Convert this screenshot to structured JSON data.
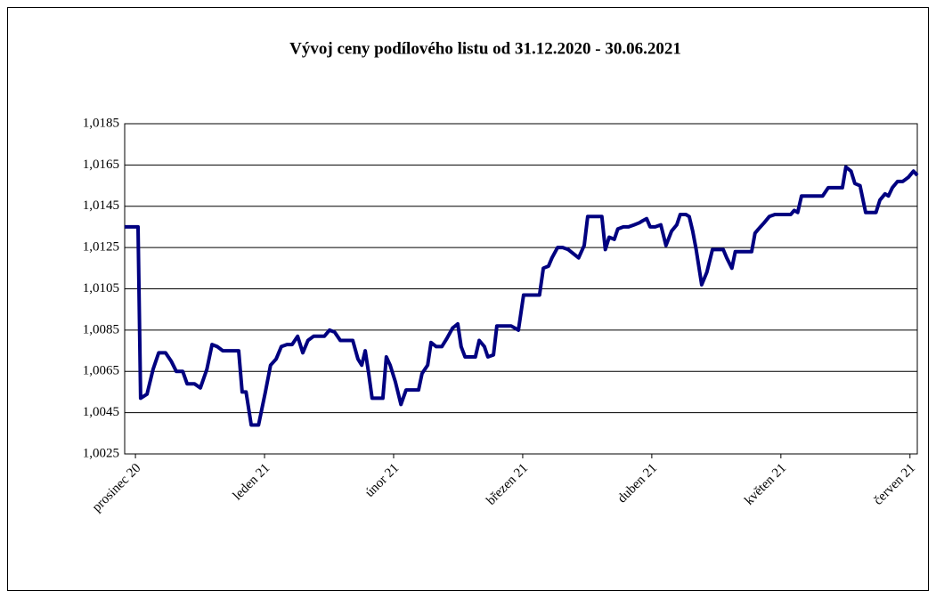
{
  "chart_data": {
    "type": "line",
    "title": "Vývoj ceny podílového listu od 31.12.2020 - 30.06.2021",
    "x": [
      -2.5,
      0.6,
      1.2,
      2.7,
      4.1,
      5.4,
      7.0,
      8.3,
      9.5,
      11.0,
      12.0,
      13.7,
      15.1,
      16.6,
      17.8,
      19.0,
      20.3,
      21.9,
      24.0,
      24.8,
      25.7,
      26.9,
      28.6,
      30.2,
      31.4,
      32.7,
      33.9,
      35.2,
      36.4,
      37.7,
      38.9,
      40.1,
      41.4,
      42.6,
      43.9,
      45.1,
      46.3,
      47.6,
      49.2,
      50.5,
      51.7,
      52.6,
      53.4,
      54.2,
      55.0,
      56.3,
      57.5,
      58.3,
      59.2,
      60.4,
      61.7,
      62.9,
      64.6,
      65.8,
      66.6,
      67.9,
      68.7,
      69.9,
      71.2,
      72.4,
      73.7,
      74.9,
      75.7,
      76.6,
      77.8,
      79.0,
      79.9,
      81.1,
      81.9,
      83.2,
      84.0,
      85.2,
      86.1,
      87.3,
      89.0,
      90.2,
      91.5,
      92.7,
      93.9,
      94.8,
      96.0,
      96.8,
      98.1,
      99.3,
      100.6,
      101.8,
      103.0,
      104.3,
      105.1,
      106.3,
      107.6,
      108.4,
      109.2,
      110.1,
      111.3,
      112.1,
      113.4,
      114.6,
      115.9,
      117.1,
      117.9,
      118.8,
      119.6,
      120.8,
      122.1,
      123.3,
      124.6,
      125.8,
      126.6,
      127.9,
      128.7,
      129.5,
      130.3,
      131.6,
      132.8,
      134.1,
      135.3,
      136.6,
      137.4,
      138.6,
      139.4,
      140.7,
      141.9,
      143.2,
      144.0,
      144.8,
      146.1,
      147.3,
      148.6,
      149.8,
      151.0,
      152.3,
      153.1,
      153.9,
      154.8,
      156.0,
      157.2,
      158.5,
      159.7,
      161.0,
      162.2,
      163.5,
      164.3,
      165.1,
      166.3,
      167.2,
      168.4,
      169.7,
      170.9,
      172.1,
      173.0,
      174.2,
      175.0,
      175.9,
      177.1,
      178.3,
      179.6,
      180.8,
      181.7
    ],
    "series": [
      {
        "color": "#000080",
        "values": [
          1.0135,
          1.0135,
          1.0052,
          1.0054,
          1.0066,
          1.0074,
          1.0074,
          1.007,
          1.0065,
          1.0065,
          1.0059,
          1.0059,
          1.0057,
          1.0066,
          1.0078,
          1.0077,
          1.0075,
          1.0075,
          1.0075,
          1.0055,
          1.0055,
          1.0039,
          1.0039,
          1.0055,
          1.0068,
          1.0071,
          1.0077,
          1.0078,
          1.0078,
          1.0082,
          1.0074,
          1.008,
          1.0082,
          1.0082,
          1.0082,
          1.0085,
          1.0084,
          1.008,
          1.008,
          1.008,
          1.0071,
          1.0068,
          1.0075,
          1.0064,
          1.0052,
          1.0052,
          1.0052,
          1.0072,
          1.0068,
          1.006,
          1.0049,
          1.0056,
          1.0056,
          1.0056,
          1.0064,
          1.0068,
          1.0079,
          1.0077,
          1.0077,
          1.0081,
          1.0086,
          1.0088,
          1.0077,
          1.0072,
          1.0072,
          1.0072,
          1.008,
          1.0077,
          1.0072,
          1.0073,
          1.0087,
          1.0087,
          1.0087,
          1.0087,
          1.0085,
          1.0102,
          1.0102,
          1.0102,
          1.0102,
          1.0115,
          1.0116,
          1.012,
          1.0125,
          1.0125,
          1.0124,
          1.0122,
          1.012,
          1.0126,
          1.014,
          1.014,
          1.014,
          1.014,
          1.0124,
          1.013,
          1.0129,
          1.0134,
          1.0135,
          1.0135,
          1.0136,
          1.0137,
          1.0138,
          1.0139,
          1.0135,
          1.0135,
          1.0136,
          1.0126,
          1.0133,
          1.0136,
          1.0141,
          1.0141,
          1.014,
          1.0133,
          1.0124,
          1.0107,
          1.0113,
          1.0124,
          1.0124,
          1.0124,
          1.012,
          1.0115,
          1.0123,
          1.0123,
          1.0123,
          1.0123,
          1.0132,
          1.0134,
          1.0137,
          1.014,
          1.0141,
          1.0141,
          1.0141,
          1.0141,
          1.0143,
          1.0142,
          1.015,
          1.015,
          1.015,
          1.015,
          1.015,
          1.0154,
          1.0154,
          1.0154,
          1.0154,
          1.0164,
          1.0162,
          1.0156,
          1.0155,
          1.0142,
          1.0142,
          1.0142,
          1.0148,
          1.0151,
          1.015,
          1.0154,
          1.0157,
          1.0157,
          1.0159,
          1.0162,
          1.016
        ]
      }
    ],
    "xlim": [
      -2.5,
      181.7
    ],
    "xticks": [
      {
        "value": 0,
        "label": "prosinec 20"
      },
      {
        "value": 30,
        "label": "leden 21"
      },
      {
        "value": 60,
        "label": "únor 21"
      },
      {
        "value": 90,
        "label": "březen 21"
      },
      {
        "value": 120,
        "label": "duben 21"
      },
      {
        "value": 150,
        "label": "květen 21"
      },
      {
        "value": 180,
        "label": "červen 21"
      }
    ],
    "ylim": [
      1.0025,
      1.0185
    ],
    "yticks": [
      {
        "value": 1.0025,
        "label": "1,0025"
      },
      {
        "value": 1.0045,
        "label": "1,0045"
      },
      {
        "value": 1.0065,
        "label": "1,0065"
      },
      {
        "value": 1.0085,
        "label": "1,0085"
      },
      {
        "value": 1.0105,
        "label": "1,0105"
      },
      {
        "value": 1.0125,
        "label": "1,0125"
      },
      {
        "value": 1.0145,
        "label": "1,0145"
      },
      {
        "value": 1.0165,
        "label": "1,0165"
      },
      {
        "value": 1.0185,
        "label": "1,0185"
      }
    ],
    "grid": true
  }
}
